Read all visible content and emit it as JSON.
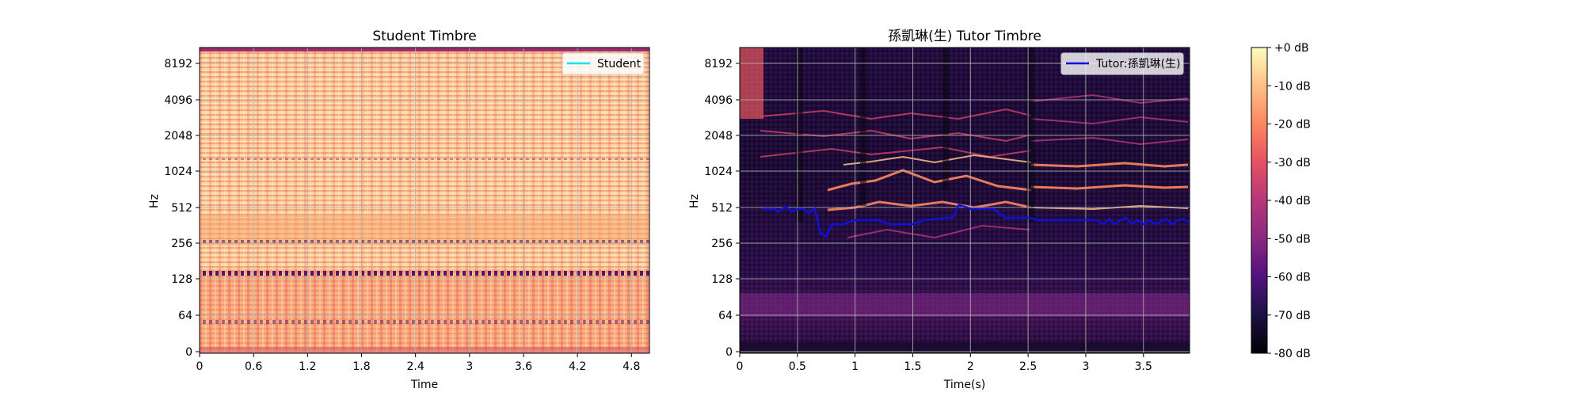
{
  "charts": [
    {
      "title": "Student Timbre",
      "xlabel": "Time",
      "ylabel": "Hz",
      "xticks": [
        "0",
        "0.6",
        "1.2",
        "1.8",
        "2.4",
        "3",
        "3.6",
        "4.2",
        "4.8"
      ],
      "yticks": [
        "0",
        "64",
        "128",
        "256",
        "512",
        "1024",
        "2048",
        "4096",
        "8192"
      ],
      "legend": "Student"
    },
    {
      "title": "孫凱琳(生) Tutor Timbre",
      "xlabel": "Time(s)",
      "ylabel": "Hz",
      "xticks": [
        "0",
        "0.5",
        "1",
        "1.5",
        "2",
        "2.5",
        "3",
        "3.5"
      ],
      "yticks": [
        "0",
        "64",
        "128",
        "256",
        "512",
        "1024",
        "2048",
        "4096",
        "8192"
      ],
      "legend": "Tutor:孫凱琳(生)"
    }
  ],
  "colorbar": {
    "ticks": [
      "+0 dB",
      "-10 dB",
      "-20 dB",
      "-30 dB",
      "-40 dB",
      "-50 dB",
      "-60 dB",
      "-70 dB",
      "-80 dB"
    ]
  },
  "chart_data": [
    {
      "type": "heatmap",
      "title": "Student Timbre",
      "xlabel": "Time",
      "ylabel": "Hz",
      "xlim": [
        0,
        5.0
      ],
      "y_scale": "log2",
      "y_ticks": [
        0,
        64,
        128,
        256,
        512,
        1024,
        2048,
        4096,
        8192
      ],
      "x_ticks": [
        0,
        0.6,
        1.2,
        1.8,
        2.4,
        3,
        3.6,
        4.2,
        4.8
      ],
      "grid": true,
      "legend_position": "top-right",
      "series": [
        {
          "name": "Student",
          "color": "#00e5ee",
          "values": []
        }
      ]
    },
    {
      "type": "heatmap",
      "title": "孫凱琳(生) Tutor Timbre",
      "xlabel": "Time(s)",
      "ylabel": "Hz",
      "xlim": [
        0,
        3.9
      ],
      "y_scale": "log2",
      "y_ticks": [
        0,
        64,
        128,
        256,
        512,
        1024,
        2048,
        4096,
        8192
      ],
      "x_ticks": [
        0,
        0.5,
        1,
        1.5,
        2,
        2.5,
        3,
        3.5
      ],
      "grid": true,
      "legend_position": "top-right",
      "series": [
        {
          "name": "Tutor:孫凱琳(生)",
          "color": "#1010dd",
          "x": [
            0.2,
            0.3,
            0.33,
            0.4,
            0.45,
            0.5,
            0.55,
            0.6,
            0.65,
            0.7,
            0.75,
            0.8,
            0.9,
            1.0,
            1.1,
            1.2,
            1.3,
            1.4,
            1.5,
            1.6,
            1.7,
            1.8,
            1.85,
            1.9,
            1.95,
            2.0,
            2.1,
            2.2,
            2.3,
            2.4,
            2.5,
            2.6,
            2.7,
            2.8,
            2.9,
            3.0,
            3.1,
            3.15,
            3.2,
            3.25,
            3.3,
            3.35,
            3.4,
            3.45,
            3.5,
            3.55,
            3.6,
            3.65,
            3.7,
            3.75,
            3.8,
            3.85,
            3.9
          ],
          "y": [
            500,
            500,
            470,
            520,
            470,
            500,
            500,
            460,
            500,
            310,
            290,
            370,
            370,
            400,
            400,
            400,
            370,
            370,
            370,
            400,
            410,
            420,
            420,
            540,
            520,
            500,
            500,
            500,
            420,
            420,
            420,
            400,
            400,
            400,
            400,
            400,
            400,
            370,
            410,
            370,
            400,
            420,
            370,
            400,
            370,
            400,
            370,
            390,
            410,
            370,
            400,
            410,
            380
          ]
        }
      ]
    }
  ],
  "colors": {
    "student_line": "#00e5ee",
    "tutor_line": "#1010dd",
    "colormap": "magma"
  }
}
